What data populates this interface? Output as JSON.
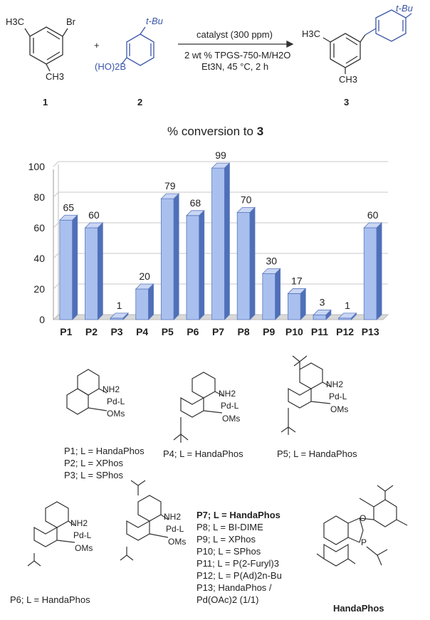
{
  "scheme": {
    "compound1_label": "1",
    "compound2_label": "2",
    "compound3_label": "3",
    "plus": "+",
    "c1_ch3_top": "H3C",
    "c1_br": "Br",
    "c1_ch3_bottom": "CH3",
    "c2_tbu": "t-Bu",
    "c2_boronic": "(HO)2B",
    "c3_ch3_top": "H3C",
    "c3_ch3_bottom": "CH3",
    "c3_tbu": "t-Bu",
    "cond_top": "catalyst (300 ppm)",
    "cond_mid": "2 wt % TPGS-750-M/H2O",
    "cond_bot": "Et3N, 45 °C, 2 h"
  },
  "chart_title_prefix": "% conversion to ",
  "chart_title_bold": "3",
  "chart_data": {
    "type": "bar",
    "title": "% conversion to 3",
    "categories": [
      "P1",
      "P2",
      "P3",
      "P4",
      "P5",
      "P6",
      "P7",
      "P8",
      "P9",
      "P10",
      "P11",
      "P12",
      "P13"
    ],
    "values": [
      65,
      60,
      1,
      20,
      79,
      68,
      99,
      70,
      30,
      17,
      3,
      1,
      60
    ],
    "ylim": [
      0,
      100
    ],
    "yticks": [
      0,
      20,
      40,
      60,
      80,
      100
    ],
    "grid": true,
    "bar_color": "#a9c0ef",
    "bar_color_dark": "#4f6fb8"
  },
  "legend": {
    "p1": "P1; L = HandaPhos",
    "p2": "P2; L = XPhos",
    "p3": "P3; L = SPhos",
    "p4": "P4; L = HandaPhos",
    "p5": "P5; L = HandaPhos",
    "p6": "P6; L = HandaPhos",
    "p7": "P7;  L = HandaPhos",
    "p8": "P8;  L = BI-DIME",
    "p9": "P9;  L = XPhos",
    "p10": "P10; L = SPhos",
    "p11": "P11; L = P(2-Furyl)3",
    "p12": "P12; L = P(Ad)2n-Bu",
    "p13a": "P13; HandaPhos /",
    "p13b": "Pd(OAc)2 (1/1)",
    "handaphos": "HandaPhos"
  },
  "struct_labels": {
    "nh2": "NH2",
    "pd_l": "Pd-L",
    "oms": "OMs",
    "o": "O",
    "p": "P"
  }
}
